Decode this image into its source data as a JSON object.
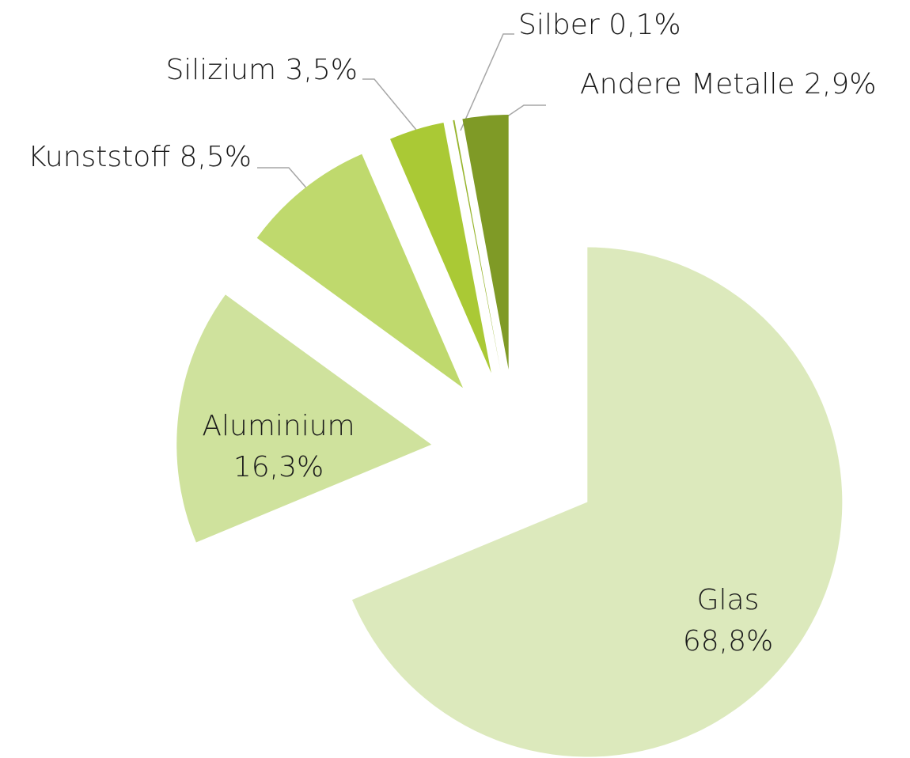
{
  "chart_data": {
    "type": "pie",
    "categories": [
      "Glas",
      "Aluminium",
      "Kunststoff",
      "Silizium",
      "Silber",
      "Andere Metalle"
    ],
    "values": [
      68.8,
      16.3,
      8.5,
      3.5,
      0.1,
      2.9
    ],
    "value_labels": [
      "68,8%",
      "16,3%",
      "8,5%",
      "3,5%",
      "0,1%",
      "2,9%"
    ],
    "colors": [
      "#dce9bc",
      "#cfe29d",
      "#bfd96d",
      "#aac935",
      "#98b52e",
      "#7f9a26"
    ]
  }
}
